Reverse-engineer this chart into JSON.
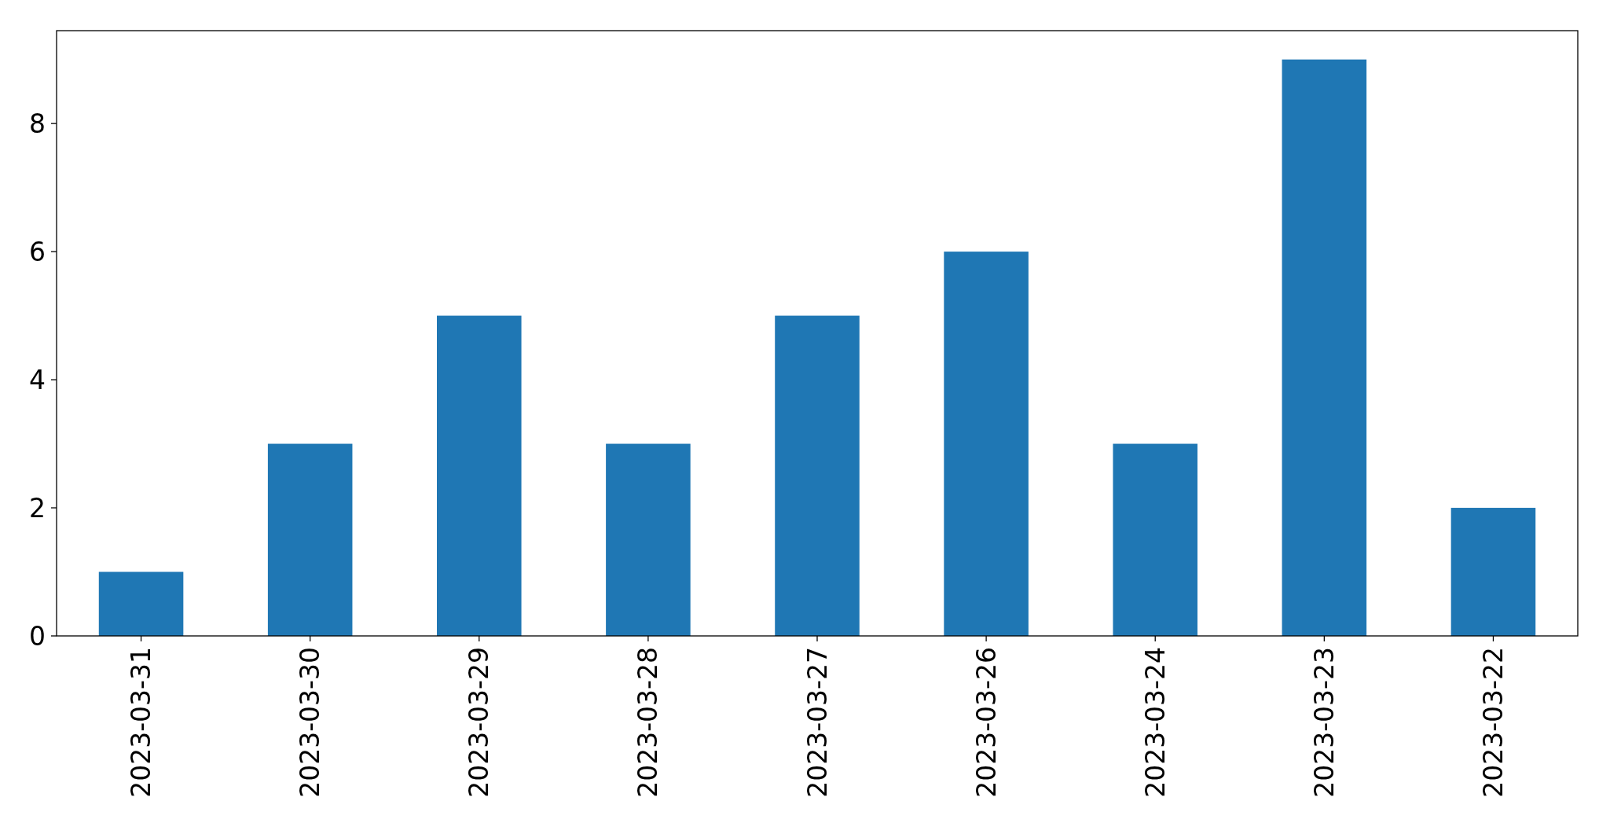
{
  "chart_data": {
    "type": "bar",
    "categories": [
      "2023-03-31",
      "2023-03-30",
      "2023-03-29",
      "2023-03-28",
      "2023-03-27",
      "2023-03-26",
      "2023-03-24",
      "2023-03-23",
      "2023-03-22"
    ],
    "values": [
      1,
      3,
      5,
      3,
      5,
      6,
      3,
      9,
      2
    ],
    "color": "#1f77b4",
    "ylim": [
      0,
      9.45
    ],
    "yticks": [
      0,
      2,
      4,
      6,
      8
    ],
    "grid": false
  }
}
